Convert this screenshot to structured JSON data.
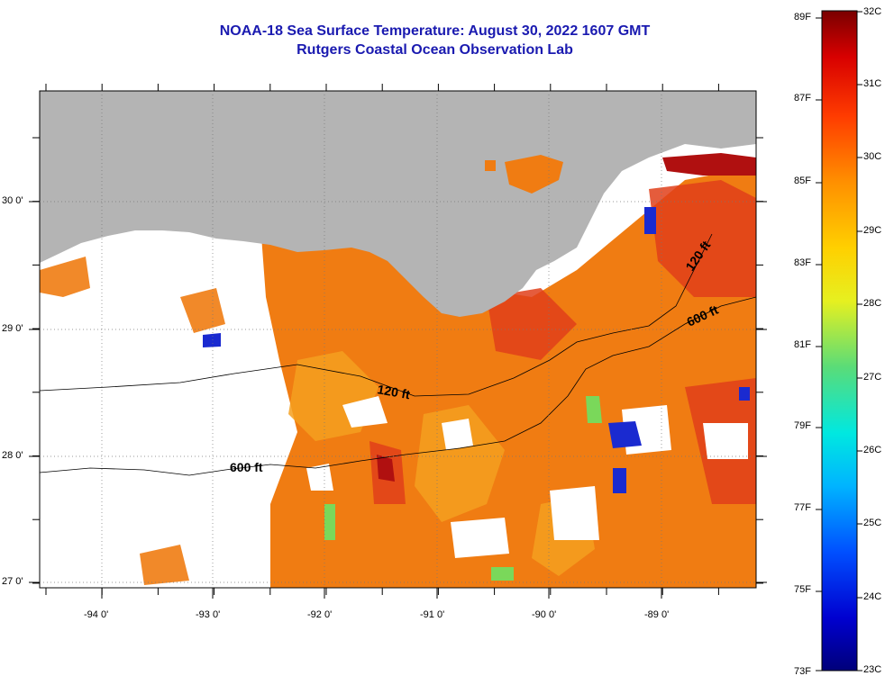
{
  "title": {
    "line1": "NOAA-18 Sea Surface Temperature:  August 30, 2022 1607 GMT",
    "line2": "Rutgers Coastal Ocean Observation Lab"
  },
  "axes": {
    "lon_labels": [
      "-94 0'",
      "-93 0'",
      "-92 0'",
      "-91 0'",
      "-90 0'",
      "-89 0'"
    ],
    "lat_labels": [
      "30 0'",
      "29 0'",
      "28 0'",
      "27 0'"
    ]
  },
  "isobaths": {
    "shallow_label": "120 ft",
    "deep_label": "600 ft"
  },
  "colorbar": {
    "fahrenheit": [
      "89F",
      "87F",
      "85F",
      "83F",
      "81F",
      "79F",
      "77F",
      "75F",
      "73F"
    ],
    "celsius": [
      "32C",
      "31C",
      "30C",
      "29C",
      "28C",
      "27C",
      "26C",
      "25C",
      "24C",
      "23C"
    ]
  },
  "colors": {
    "land": "#b4b4b4",
    "title": "#1a1ab0",
    "cloud": "#ffffff"
  }
}
